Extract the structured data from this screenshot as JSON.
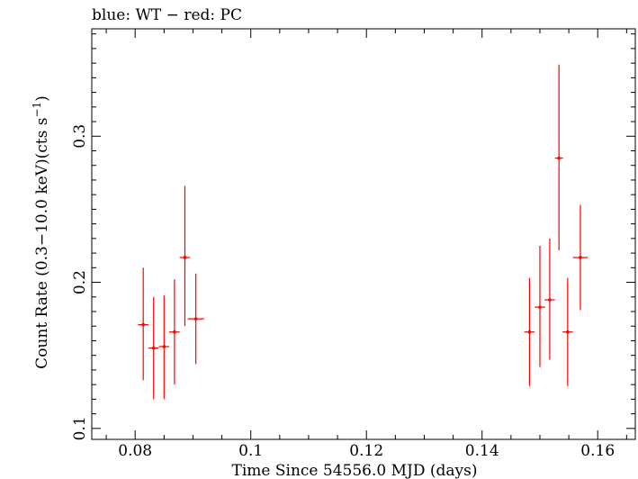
{
  "chart_data": {
    "type": "scatter",
    "title": "blue: WT − red: PC",
    "xlabel": "Time Since 54556.0 MJD (days)",
    "ylabel": "Count Rate (0.3−10.0 keV)(cts s",
    "ylabel_sup": "−1",
    "ylabel_close": ")",
    "xlim": [
      0.0725,
      0.1665
    ],
    "ylim": [
      0.0925,
      0.3735
    ],
    "xticks": [
      0.08,
      0.1,
      0.12,
      0.14,
      0.16
    ],
    "xtick_labels": [
      "0.08",
      "0.1",
      "0.12",
      "0.14",
      "0.16"
    ],
    "yticks": [
      0.1,
      0.2,
      0.3
    ],
    "ytick_labels": [
      "0.1",
      "0.2",
      "0.3"
    ],
    "series": [
      {
        "color": "#ff0000",
        "points": [
          {
            "x": 0.0814,
            "xerr": 0.0009,
            "y": 0.171,
            "ylo": 0.133,
            "yhi": 0.21
          },
          {
            "x": 0.0832,
            "xerr": 0.0009,
            "y": 0.155,
            "ylo": 0.12,
            "yhi": 0.19
          },
          {
            "x": 0.085,
            "xerr": 0.0009,
            "y": 0.156,
            "ylo": 0.12,
            "yhi": 0.191
          },
          {
            "x": 0.0868,
            "xerr": 0.0009,
            "y": 0.166,
            "ylo": 0.13,
            "yhi": 0.202
          },
          {
            "x": 0.0886,
            "xerr": 0.0009,
            "y": 0.217,
            "ylo": 0.17,
            "yhi": 0.266
          },
          {
            "x": 0.0905,
            "xerr": 0.0014,
            "y": 0.175,
            "ylo": 0.144,
            "yhi": 0.206
          },
          {
            "x": 0.1482,
            "xerr": 0.0009,
            "y": 0.166,
            "ylo": 0.129,
            "yhi": 0.203
          },
          {
            "x": 0.15,
            "xerr": 0.0009,
            "y": 0.183,
            "ylo": 0.142,
            "yhi": 0.225
          },
          {
            "x": 0.1517,
            "xerr": 0.0009,
            "y": 0.188,
            "ylo": 0.147,
            "yhi": 0.23
          },
          {
            "x": 0.1533,
            "xerr": 0.0007,
            "y": 0.285,
            "ylo": 0.222,
            "yhi": 0.349
          },
          {
            "x": 0.1548,
            "xerr": 0.0009,
            "y": 0.166,
            "ylo": 0.129,
            "yhi": 0.203
          },
          {
            "x": 0.157,
            "xerr": 0.0013,
            "y": 0.217,
            "ylo": 0.181,
            "yhi": 0.253
          }
        ]
      }
    ]
  }
}
